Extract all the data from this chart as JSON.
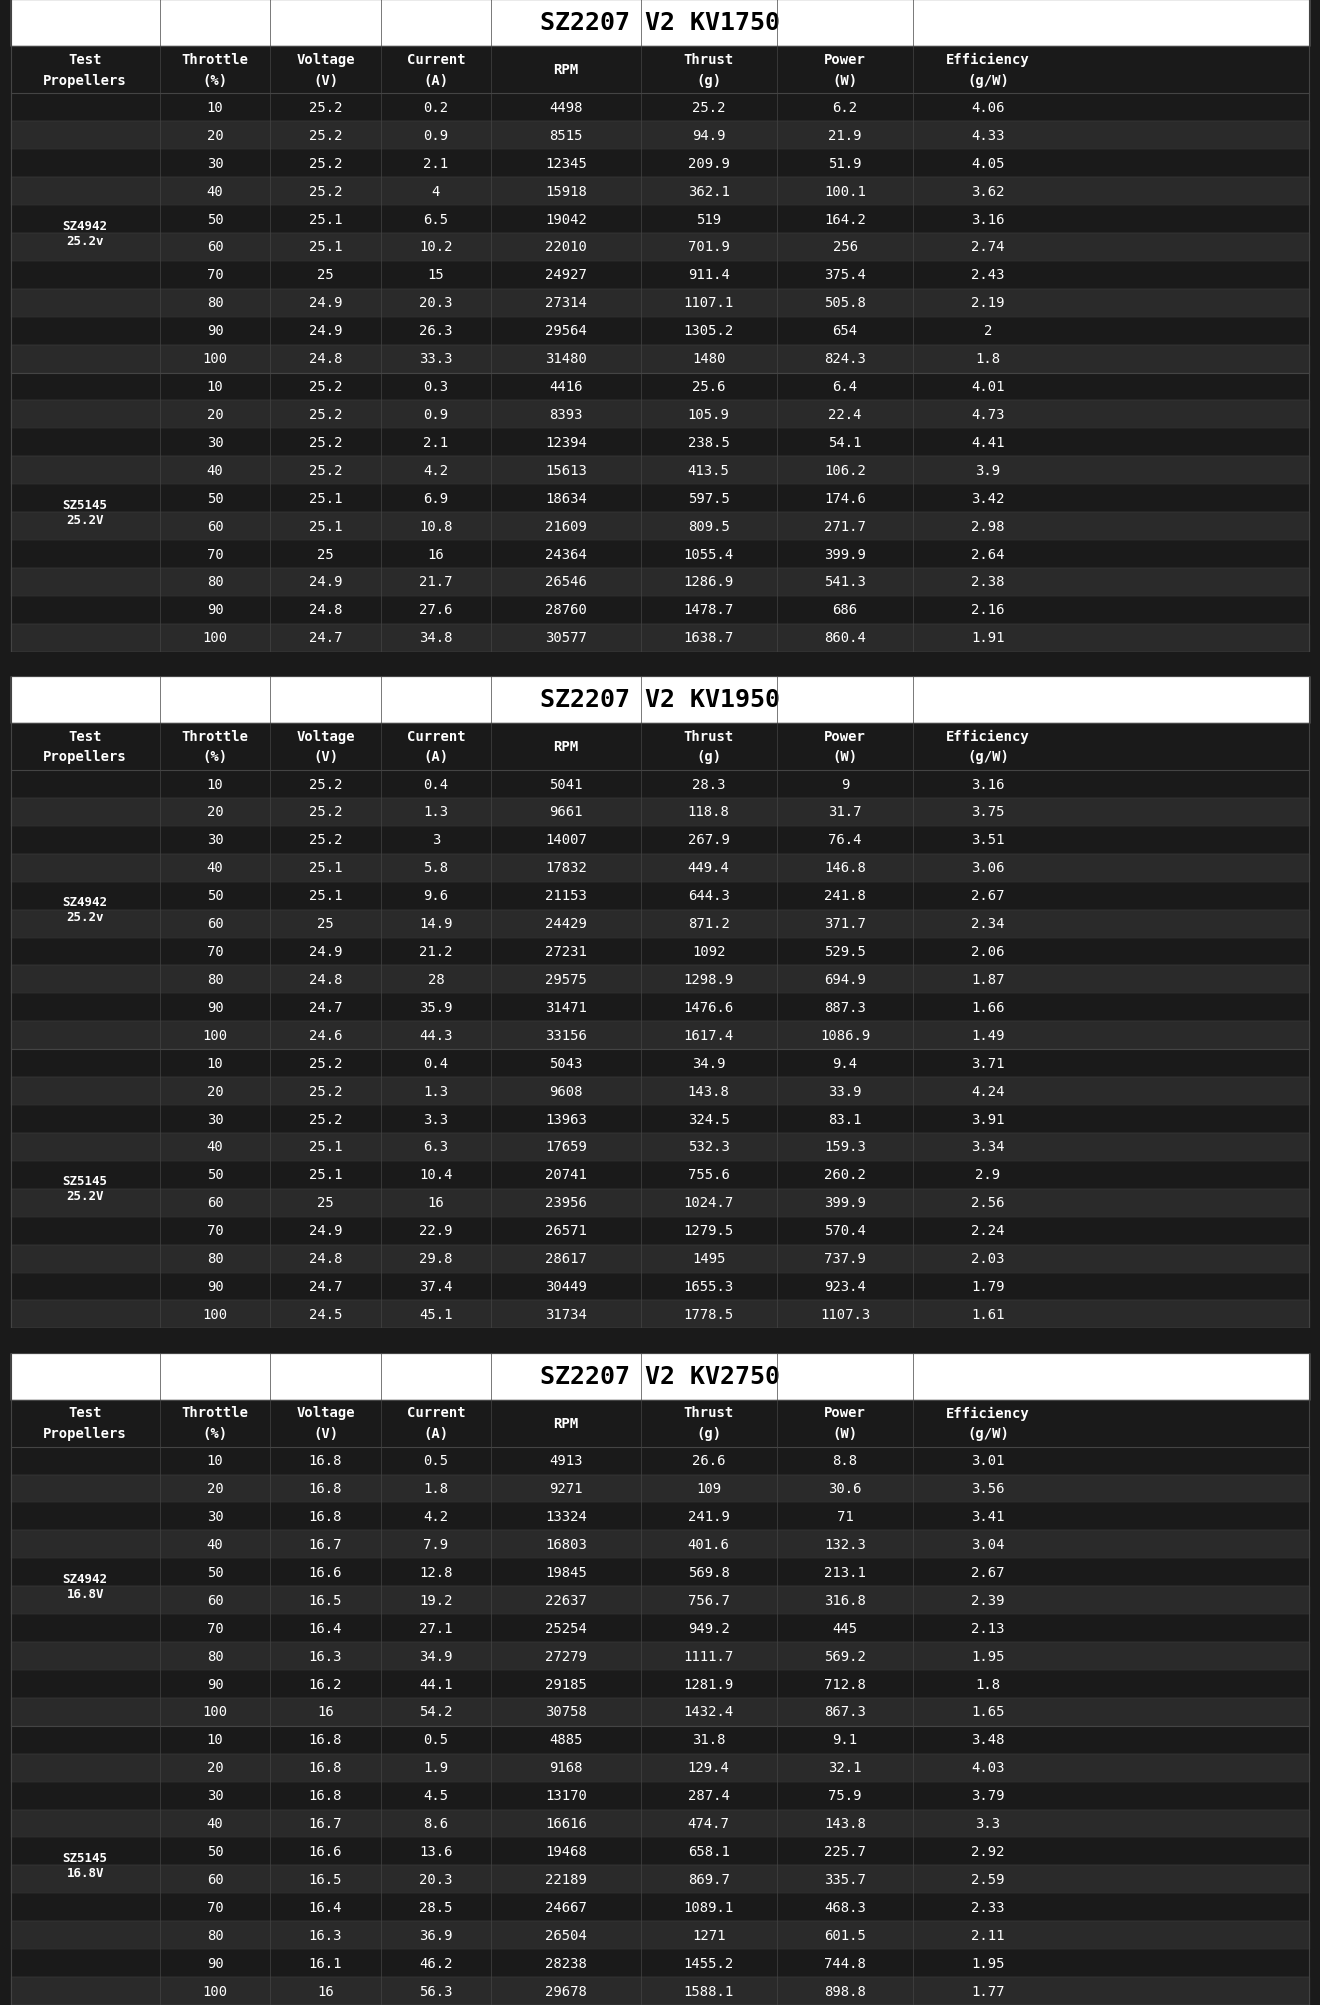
{
  "tables": [
    {
      "title": "SZ2207 V2 KV1750",
      "sections": [
        {
          "prop_label": "SZ4942\n25.2v",
          "rows": [
            [
              10,
              25.2,
              0.2,
              4498,
              25.2,
              6.2,
              4.06
            ],
            [
              20,
              25.2,
              0.9,
              8515,
              94.9,
              21.9,
              4.33
            ],
            [
              30,
              25.2,
              2.1,
              12345,
              209.9,
              51.9,
              4.05
            ],
            [
              40,
              25.2,
              4.0,
              15918,
              362.1,
              100.1,
              3.62
            ],
            [
              50,
              25.1,
              6.5,
              19042,
              519.0,
              164.2,
              3.16
            ],
            [
              60,
              25.1,
              10.2,
              22010,
              701.9,
              256.0,
              2.74
            ],
            [
              70,
              25.0,
              15.0,
              24927,
              911.4,
              375.4,
              2.43
            ],
            [
              80,
              24.9,
              20.3,
              27314,
              1107.1,
              505.8,
              2.19
            ],
            [
              90,
              24.9,
              26.3,
              29564,
              1305.2,
              654.0,
              2.0
            ],
            [
              100,
              24.8,
              33.3,
              31480,
              1480.0,
              824.3,
              1.8
            ]
          ]
        },
        {
          "prop_label": "SZ5145\n25.2V",
          "rows": [
            [
              10,
              25.2,
              0.3,
              4416,
              25.6,
              6.4,
              4.01
            ],
            [
              20,
              25.2,
              0.9,
              8393,
              105.9,
              22.4,
              4.73
            ],
            [
              30,
              25.2,
              2.1,
              12394,
              238.5,
              54.1,
              4.41
            ],
            [
              40,
              25.2,
              4.2,
              15613,
              413.5,
              106.2,
              3.9
            ],
            [
              50,
              25.1,
              6.9,
              18634,
              597.5,
              174.6,
              3.42
            ],
            [
              60,
              25.1,
              10.8,
              21609,
              809.5,
              271.7,
              2.98
            ],
            [
              70,
              25.0,
              16.0,
              24364,
              1055.4,
              399.9,
              2.64
            ],
            [
              80,
              24.9,
              21.7,
              26546,
              1286.9,
              541.3,
              2.38
            ],
            [
              90,
              24.8,
              27.6,
              28760,
              1478.7,
              686.0,
              2.16
            ],
            [
              100,
              24.7,
              34.8,
              30577,
              1638.7,
              860.4,
              1.91
            ]
          ]
        }
      ]
    },
    {
      "title": "SZ2207 V2 KV1950",
      "sections": [
        {
          "prop_label": "SZ4942\n25.2v",
          "rows": [
            [
              10,
              25.2,
              0.4,
              5041,
              28.3,
              9.0,
              3.16
            ],
            [
              20,
              25.2,
              1.3,
              9661,
              118.8,
              31.7,
              3.75
            ],
            [
              30,
              25.2,
              3.0,
              14007,
              267.9,
              76.4,
              3.51
            ],
            [
              40,
              25.1,
              5.8,
              17832,
              449.4,
              146.8,
              3.06
            ],
            [
              50,
              25.1,
              9.6,
              21153,
              644.3,
              241.8,
              2.67
            ],
            [
              60,
              25.0,
              14.9,
              24429,
              871.2,
              371.7,
              2.34
            ],
            [
              70,
              24.9,
              21.2,
              27231,
              1092.0,
              529.5,
              2.06
            ],
            [
              80,
              24.8,
              28.0,
              29575,
              1298.9,
              694.9,
              1.87
            ],
            [
              90,
              24.7,
              35.9,
              31471,
              1476.6,
              887.3,
              1.66
            ],
            [
              100,
              24.6,
              44.3,
              33156,
              1617.4,
              1086.9,
              1.49
            ]
          ]
        },
        {
          "prop_label": "SZ5145\n25.2V",
          "rows": [
            [
              10,
              25.2,
              0.4,
              5043,
              34.9,
              9.4,
              3.71
            ],
            [
              20,
              25.2,
              1.3,
              9608,
              143.8,
              33.9,
              4.24
            ],
            [
              30,
              25.2,
              3.3,
              13963,
              324.5,
              83.1,
              3.91
            ],
            [
              40,
              25.1,
              6.3,
              17659,
              532.3,
              159.3,
              3.34
            ],
            [
              50,
              25.1,
              10.4,
              20741,
              755.6,
              260.2,
              2.9
            ],
            [
              60,
              25.0,
              16.0,
              23956,
              1024.7,
              399.9,
              2.56
            ],
            [
              70,
              24.9,
              22.9,
              26571,
              1279.5,
              570.4,
              2.24
            ],
            [
              80,
              24.8,
              29.8,
              28617,
              1495.0,
              737.9,
              2.03
            ],
            [
              90,
              24.7,
              37.4,
              30449,
              1655.3,
              923.4,
              1.79
            ],
            [
              100,
              24.5,
              45.1,
              31734,
              1778.5,
              1107.3,
              1.61
            ]
          ]
        }
      ]
    },
    {
      "title": "SZ2207 V2 KV2750",
      "sections": [
        {
          "prop_label": "SZ4942\n16.8V",
          "rows": [
            [
              10,
              16.8,
              0.5,
              4913,
              26.6,
              8.8,
              3.01
            ],
            [
              20,
              16.8,
              1.8,
              9271,
              109.0,
              30.6,
              3.56
            ],
            [
              30,
              16.8,
              4.2,
              13324,
              241.9,
              71.0,
              3.41
            ],
            [
              40,
              16.7,
              7.9,
              16803,
              401.6,
              132.3,
              3.04
            ],
            [
              50,
              16.6,
              12.8,
              19845,
              569.8,
              213.1,
              2.67
            ],
            [
              60,
              16.5,
              19.2,
              22637,
              756.7,
              316.8,
              2.39
            ],
            [
              70,
              16.4,
              27.1,
              25254,
              949.2,
              445.0,
              2.13
            ],
            [
              80,
              16.3,
              34.9,
              27279,
              1111.7,
              569.2,
              1.95
            ],
            [
              90,
              16.2,
              44.1,
              29185,
              1281.9,
              712.8,
              1.8
            ],
            [
              100,
              16.0,
              54.2,
              30758,
              1432.4,
              867.3,
              1.65
            ]
          ]
        },
        {
          "prop_label": "SZ5145\n16.8V",
          "rows": [
            [
              10,
              16.8,
              0.5,
              4885,
              31.8,
              9.1,
              3.48
            ],
            [
              20,
              16.8,
              1.9,
              9168,
              129.4,
              32.1,
              4.03
            ],
            [
              30,
              16.8,
              4.5,
              13170,
              287.4,
              75.9,
              3.79
            ],
            [
              40,
              16.7,
              8.6,
              16616,
              474.7,
              143.8,
              3.3
            ],
            [
              50,
              16.6,
              13.6,
              19468,
              658.1,
              225.7,
              2.92
            ],
            [
              60,
              16.5,
              20.3,
              22189,
              869.7,
              335.7,
              2.59
            ],
            [
              70,
              16.4,
              28.5,
              24667,
              1089.1,
              468.3,
              2.33
            ],
            [
              80,
              16.3,
              36.9,
              26504,
              1271.0,
              601.5,
              2.11
            ],
            [
              90,
              16.1,
              46.2,
              28238,
              1455.2,
              744.8,
              1.95
            ],
            [
              100,
              16.0,
              56.3,
              29678,
              1588.1,
              898.8,
              1.77
            ]
          ]
        }
      ]
    }
  ],
  "col_headers_line1": [
    "Test",
    "Throttle",
    "Voltage",
    "Current",
    "RPM",
    "Thrust",
    "Power",
    "Efficiency"
  ],
  "col_headers_line2": [
    "Propellers",
    "(%)",
    "(V)",
    "(A)",
    "",
    "(g)",
    "(W)",
    "(g/W)"
  ],
  "bg_dark": "#1a1a1a",
  "bg_title": "#ffffff",
  "bg_header": "#222222",
  "text_color": "#ffffff",
  "text_title": "#000000",
  "divider_color": "#444444",
  "row_colors": [
    "#1a1a1a",
    "#2a2a2a"
  ],
  "title_fontsize": 18,
  "header_fontsize": 10,
  "data_fontsize": 10,
  "prop_fontsize": 9
}
